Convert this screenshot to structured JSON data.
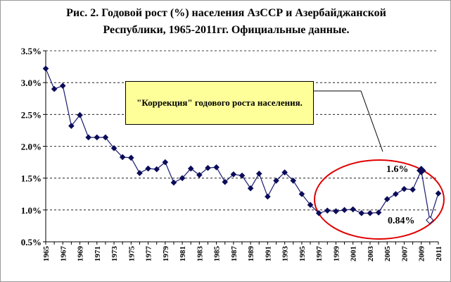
{
  "chart_data": {
    "type": "line",
    "title_lines": [
      "Рис. 2. Годовой рост (%) населения АзССР и Азербайджанской",
      "Республики, 1965-2011гг. Официальные данные."
    ],
    "xlabel": "",
    "ylabel": "",
    "ylim": [
      0.5,
      3.5
    ],
    "y_tick_labels": [
      "0.5%",
      "1.0%",
      "1.5%",
      "2.0%",
      "2.5%",
      "3.0%",
      "3.5%"
    ],
    "x_tick_labels": [
      "1965",
      "1967",
      "1969",
      "1971",
      "1973",
      "1975",
      "1977",
      "1979",
      "1981",
      "1983",
      "1985",
      "1987",
      "1989",
      "1991",
      "1993",
      "1995",
      "1997",
      "1999",
      "2001",
      "2003",
      "2005",
      "2007",
      "2009",
      "2011"
    ],
    "grid": "horizontal dashed",
    "legend": "none",
    "x": [
      1965,
      1966,
      1967,
      1968,
      1969,
      1970,
      1971,
      1972,
      1973,
      1974,
      1975,
      1976,
      1977,
      1978,
      1979,
      1980,
      1981,
      1982,
      1983,
      1984,
      1985,
      1986,
      1987,
      1988,
      1989,
      1990,
      1991,
      1992,
      1993,
      1994,
      1995,
      1996,
      1997,
      1998,
      1999,
      2000,
      2001,
      2002,
      2003,
      2004,
      2005,
      2006,
      2007,
      2008,
      2009,
      2010,
      2011
    ],
    "series": [
      {
        "values": [
          3.22,
          2.9,
          2.95,
          2.32,
          2.49,
          2.14,
          2.14,
          2.14,
          1.97,
          1.83,
          1.82,
          1.58,
          1.65,
          1.64,
          1.75,
          1.43,
          1.5,
          1.65,
          1.55,
          1.66,
          1.67,
          1.44,
          1.56,
          1.54,
          1.34,
          1.57,
          1.21,
          1.46,
          1.59,
          1.46,
          1.25,
          1.08,
          0.95,
          0.99,
          0.98,
          1.0,
          1.01,
          0.95,
          0.95,
          0.96,
          1.17,
          1.25,
          1.33,
          1.32,
          1.62,
          0.84,
          1.26
        ]
      }
    ],
    "colors": {
      "line": "#1a1a6e",
      "marker": "#0c0c5a",
      "ellipse": "#e00000",
      "annotation_fill": "#ffff99",
      "grid": "#000000"
    },
    "annotations": {
      "box_text": "\"Коррекция\" годового роста населения.",
      "peak_label": "1.6%",
      "peak_year": 2009,
      "dip_label": "0.84%",
      "dip_year": 2010
    }
  }
}
